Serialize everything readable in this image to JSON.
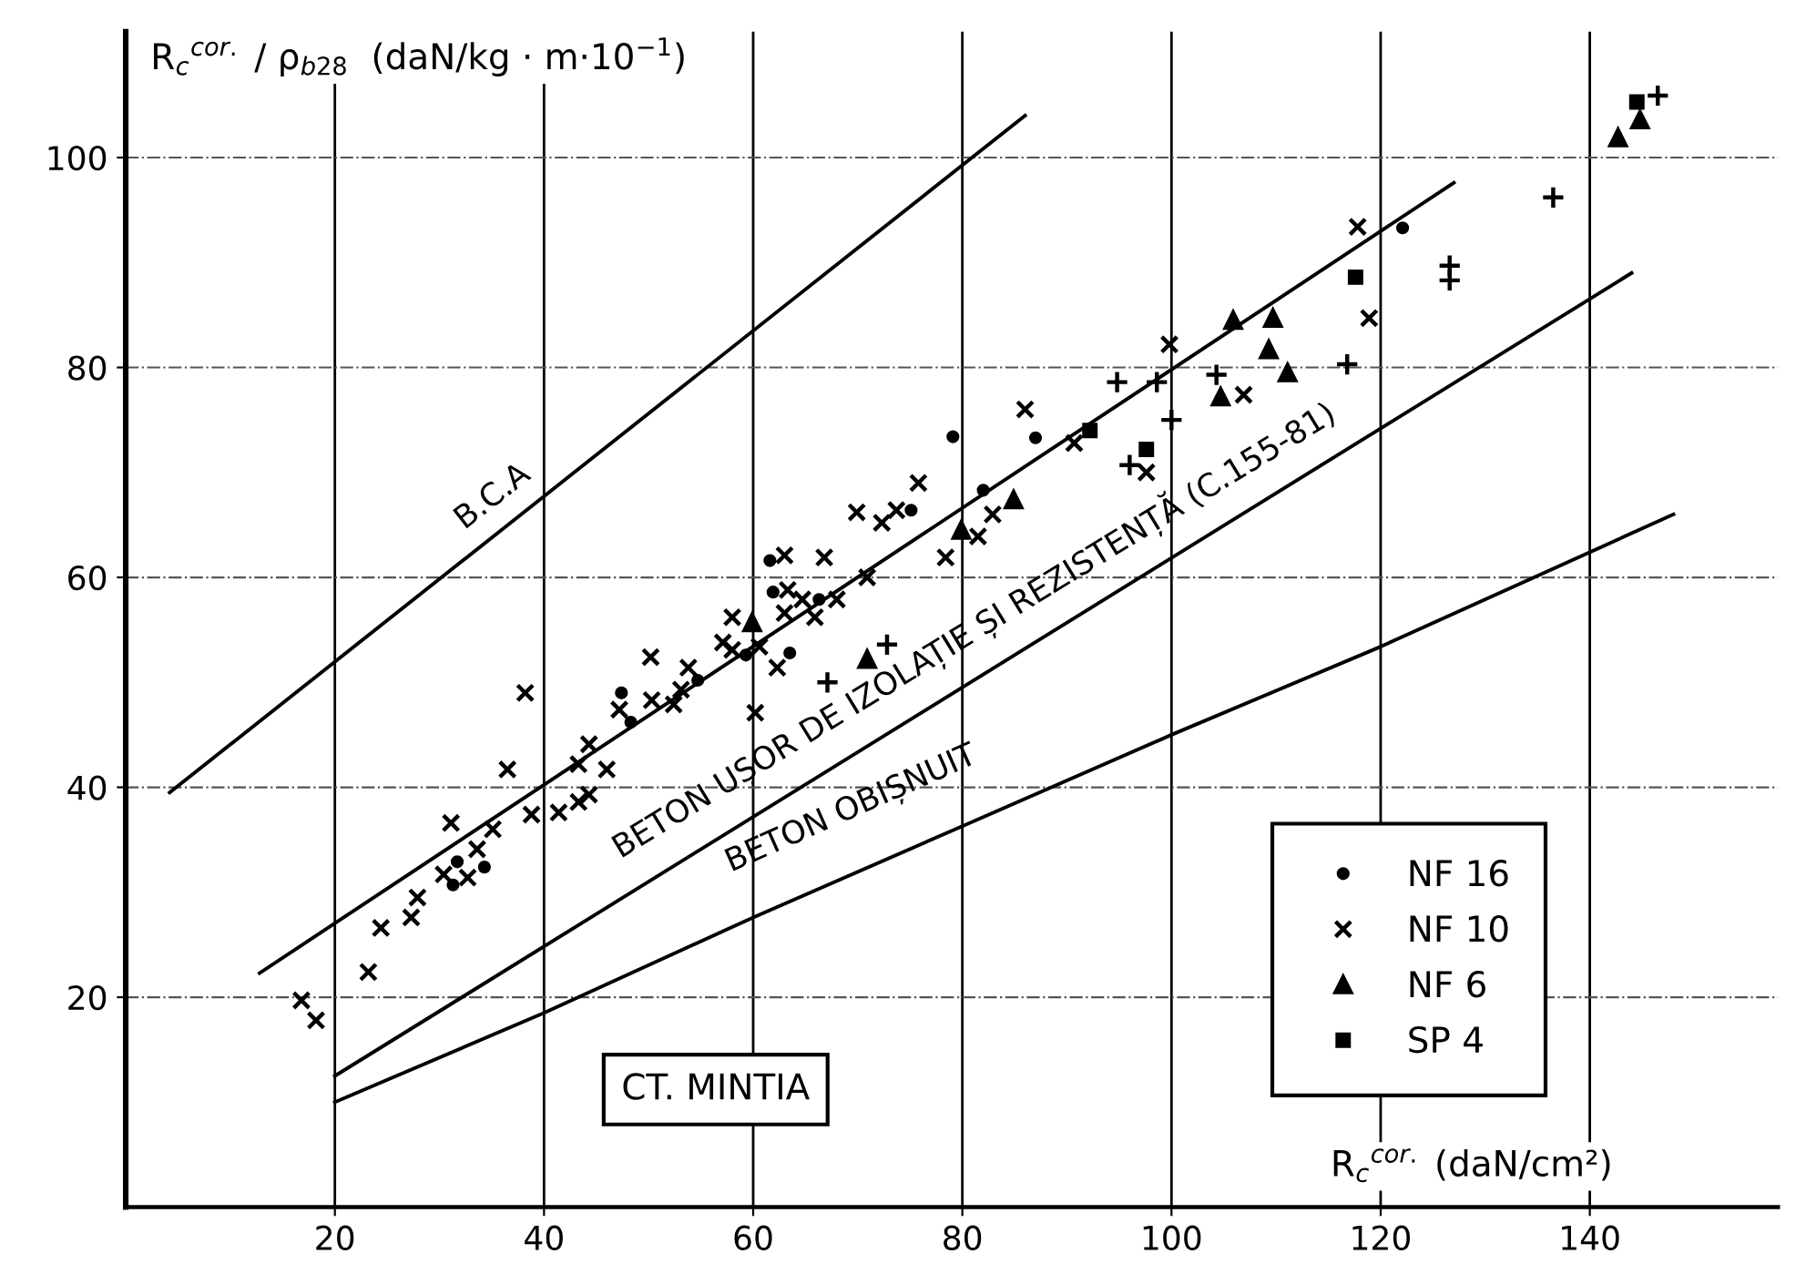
{
  "chart_data": {
    "type": "scatter",
    "xlabel": "R$_{c}$$^{cor.}$ (daN/cm²)",
    "ylabel": "R$_{c}$$^{cor.}$ / ρ$_{b28}$  (daN/kg · m·10$^{−1}$)",
    "xlim": [
      0,
      158
    ],
    "ylim": [
      0,
      112
    ],
    "xticks": [
      20,
      40,
      60,
      80,
      100,
      120,
      140
    ],
    "yticks": [
      20,
      40,
      60,
      80,
      100
    ],
    "grid": true,
    "legend": "bottom right",
    "annotations": [
      "B.C.A",
      "BETON UȘOR DE IZOLAȚIE ȘI REZISTENȚĂ (C.155-81)",
      "BETON OBIȘNUIT",
      "CT. MINTIA"
    ],
    "series": [
      {
        "color": "#000000",
        "marker": "plus",
        "x": [
          67.1,
          72.8,
          94.8,
          98.6,
          100.0,
          96.0,
          104.3,
          116.8,
          126.6,
          126.6,
          136.5,
          146.5
        ],
        "values": [
          50.0,
          53.6,
          78.6,
          78.6,
          75.0,
          70.7,
          79.3,
          80.3,
          89.7,
          88.3,
          96.2,
          105.9
        ]
      },
      {
        "name": "NF 16",
        "color": "#000000",
        "marker": "circle",
        "x": [
          47.4,
          48.3,
          31.7,
          31.3,
          34.3,
          54.7,
          63.5,
          59.3,
          61.6,
          61.9,
          66.3,
          75.1,
          79.1,
          82.0,
          87.0,
          122.1
        ],
        "values": [
          49.0,
          46.2,
          32.9,
          30.7,
          32.4,
          50.2,
          52.8,
          52.6,
          61.6,
          58.6,
          57.9,
          66.4,
          73.4,
          68.3,
          73.3,
          93.3
        ]
      },
      {
        "name": "NF 10",
        "color": "#000000",
        "marker": "cross",
        "x": [
          16.8,
          18.2,
          23.2,
          24.4,
          27.3,
          27.9,
          31.1,
          30.4,
          32.7,
          33.6,
          35.1,
          36.5,
          38.2,
          38.8,
          41.4,
          43.3,
          44.3,
          44.3,
          43.3,
          46.0,
          47.2,
          50.2,
          50.3,
          52.4,
          53.8,
          53.1,
          57.1,
          58.0,
          58.0,
          60.2,
          62.3,
          63.0,
          60.6,
          63.0,
          66.8,
          69.9,
          72.3,
          73.7,
          63.3,
          64.7,
          68.0,
          65.9,
          70.9,
          75.8,
          78.4,
          81.5,
          82.9,
          86.0,
          90.7,
          97.6,
          99.8,
          106.9,
          118.9,
          117.8
        ],
        "values": [
          19.7,
          17.8,
          22.4,
          26.6,
          27.6,
          29.5,
          36.6,
          31.7,
          31.4,
          34.1,
          36.0,
          41.7,
          49.0,
          37.4,
          37.6,
          38.6,
          39.3,
          44.1,
          42.2,
          41.7,
          47.4,
          52.4,
          48.3,
          47.9,
          51.4,
          49.3,
          53.8,
          56.2,
          53.1,
          47.1,
          51.4,
          56.6,
          53.4,
          62.1,
          61.9,
          66.2,
          65.2,
          66.4,
          58.8,
          57.9,
          57.9,
          56.2,
          60.0,
          69.0,
          61.9,
          63.9,
          66.0,
          76.0,
          72.8,
          70.0,
          82.2,
          77.4,
          84.7,
          93.4
        ]
      },
      {
        "name": "NF 6",
        "color": "#000000",
        "marker": "triangle",
        "x": [
          70.9,
          59.9,
          79.9,
          84.9,
          105.9,
          109.7,
          109.3,
          111.1,
          104.7,
          142.7,
          144.8
        ],
        "values": [
          52.2,
          55.7,
          64.5,
          67.4,
          84.5,
          84.7,
          81.7,
          79.5,
          77.2,
          101.9,
          103.6
        ]
      },
      {
        "name": "SP 4",
        "color": "#000000",
        "marker": "square",
        "x": [
          92.2,
          97.6,
          117.6,
          144.5
        ],
        "values": [
          74.0,
          72.2,
          88.6,
          105.3
        ]
      },
      {
        "type": "line",
        "color": "#000000",
        "line_style": "solid",
        "x": [
          4.2,
          86
        ],
        "values": [
          39.5,
          104
        ]
      },
      {
        "type": "line",
        "color": "#000000",
        "line_style": "solid",
        "x": [
          12.8,
          127
        ],
        "values": [
          22.3,
          97.6
        ]
      },
      {
        "type": "line",
        "color": "#000000",
        "line_style": "solid",
        "x": [
          20,
          144
        ],
        "values": [
          12.5,
          89
        ]
      },
      {
        "type": "line",
        "color": "#000000",
        "line_style": "solid",
        "x": [
          20,
          40,
          60,
          80,
          100,
          120,
          148
        ],
        "values": [
          10,
          18.5,
          27.6,
          36.3,
          45,
          53.4,
          66
        ]
      }
    ]
  }
}
